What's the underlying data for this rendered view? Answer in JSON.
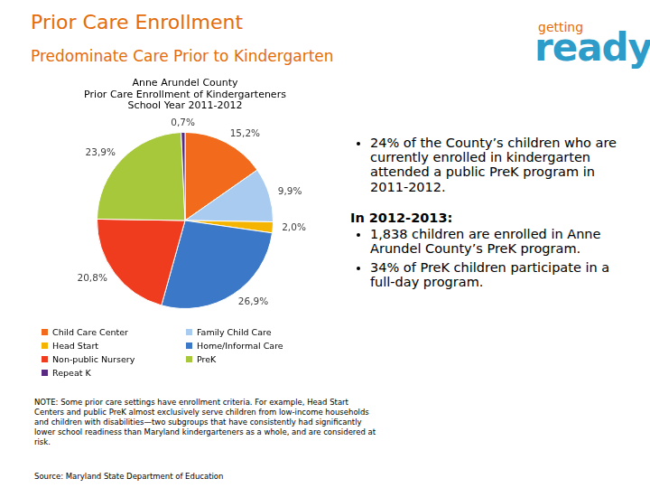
{
  "header": {
    "title": "Prior Care Enrollment",
    "subtitle": "Predominate Care Prior to Kindergarten",
    "logo": [
      "getting",
      "ready"
    ]
  },
  "chart_data": {
    "type": "pie",
    "title": [
      "Anne Arundel County",
      "Prior Care Enrollment of Kindergarteners",
      "School Year 2011-2012"
    ],
    "categories": [
      "Child Care Center",
      "Family Child Care",
      "Head Start",
      "Home/Informal Care",
      "Non-public Nursery",
      "PreK",
      "Repeat K"
    ],
    "values": [
      15.2,
      9.9,
      2.0,
      26.9,
      20.8,
      23.9,
      0.7
    ],
    "value_labels": [
      "15,2%",
      "9,9%",
      "2,0%",
      "26,9%",
      "20,8%",
      "23,9%",
      "0,7%"
    ],
    "colors": [
      "#F26B1D",
      "#A9CBF0",
      "#F5B400",
      "#3C78C8",
      "#F03C1E",
      "#A8C83C",
      "#5A2A82"
    ],
    "data_labels": true,
    "legend": "bottom"
  },
  "bullets": [
    "24% of the County’s children who are currently enrolled in kindergarten attended a public PreK program in 2011-2012."
  ],
  "section": {
    "heading": "In 2012-2013:",
    "bullets": [
      "1,838 children are enrolled in Anne Arundel County’s PreK program.",
      "34% of PreK children participate in a full-day program."
    ]
  },
  "note": "NOTE: Some prior care settings have enrollment criteria. For example, Head Start Centers and public PreK almost exclusively serve children from low-income households and children with disabilities—two subgroups that have consistently had significantly lower school readiness than Maryland kindergarteners as a whole, and are considered at risk.",
  "source": "Source: Maryland State Department of Education"
}
